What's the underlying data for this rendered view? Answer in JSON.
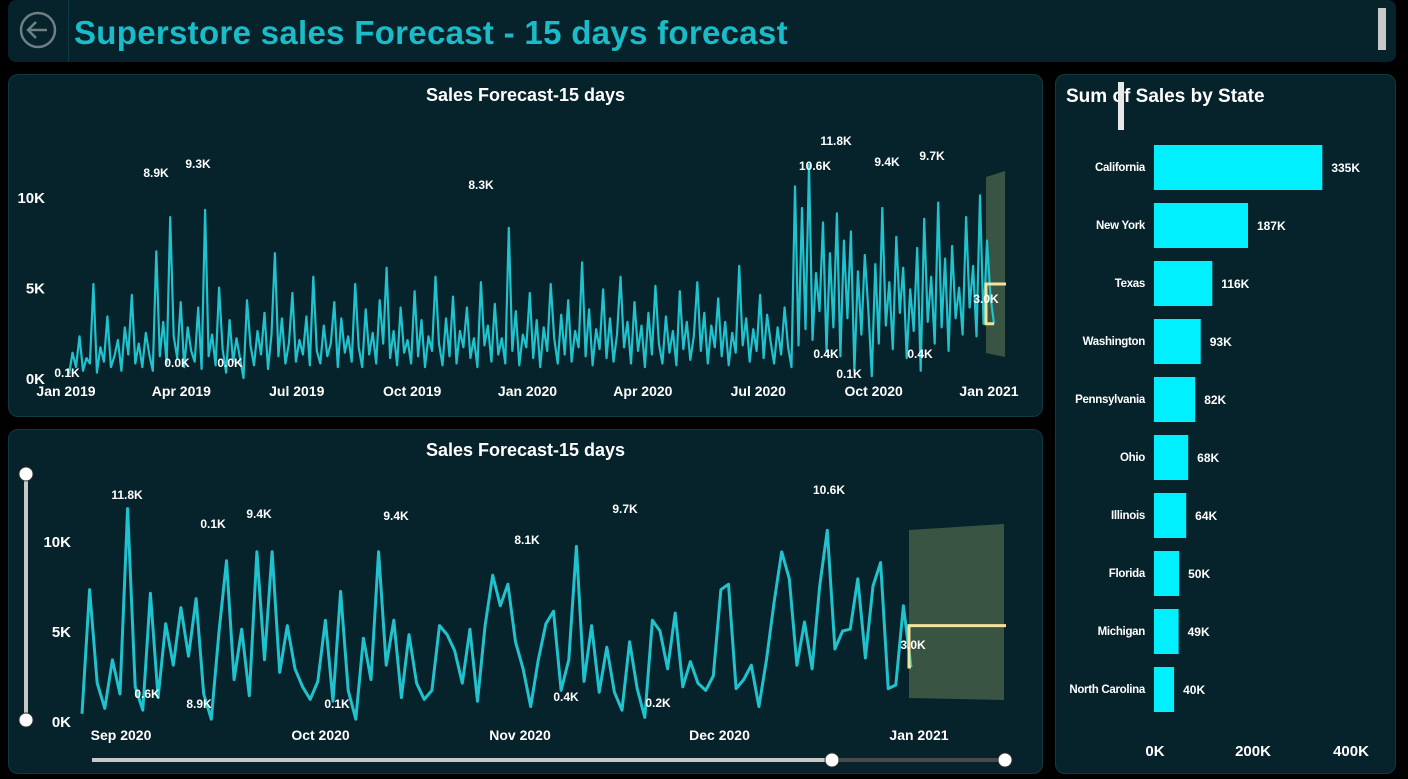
{
  "header": {
    "title": "Superstore sales Forecast - 15 days forecast"
  },
  "chart_data": [
    {
      "type": "line",
      "title": "Sales Forecast-15 days",
      "x_tick_labels": [
        "Jan 2019",
        "Apr 2019",
        "Jul 2019",
        "Oct 2019",
        "Jan 2020",
        "Apr 2020",
        "Jul 2020",
        "Oct 2020",
        "Jan 2021"
      ],
      "y_tick_labels": [
        "0K",
        "5K",
        "10K"
      ],
      "ylim": [
        0,
        12000
      ],
      "data_labels": [
        "0.1K",
        "8.9K",
        "9.3K",
        "0.0K",
        "0.0K",
        "8.3K",
        "10.6K",
        "11.8K",
        "0.4K",
        "0.1K",
        "9.4K",
        "0.4K",
        "9.7K",
        "3.0K"
      ],
      "series": [
        {
          "values": [
            200,
            1400,
            600,
            2300,
            400,
            1100,
            800,
            5200,
            300,
            1700,
            900,
            3400,
            600,
            1200,
            2100,
            400,
            2800,
            1300,
            4600,
            800,
            1900,
            600,
            2500,
            1300,
            400,
            7000,
            1200,
            3100,
            800,
            8900,
            2300,
            1100,
            4200,
            600,
            2800,
            1500,
            900,
            3900,
            500,
            9300,
            1200,
            2400,
            700,
            5000,
            1600,
            300,
            3200,
            900,
            2200,
            1100,
            0,
            4300,
            1800,
            700,
            2600,
            1300,
            3600,
            500,
            2400,
            6900,
            1200,
            3300,
            800,
            1900,
            4700,
            900,
            2100,
            1300,
            3400,
            700,
            5600,
            1500,
            800,
            2900,
            1200,
            1900,
            4200,
            600,
            3300,
            1400,
            2300,
            900,
            5200,
            1700,
            600,
            3800,
            1300,
            2500,
            800,
            4300,
            1900,
            6100,
            1100,
            2600,
            700,
            3900,
            1400,
            2100,
            800,
            4800,
            1200,
            3200,
            600,
            2300,
            1500,
            5600,
            1900,
            700,
            3300,
            1200,
            4500,
            800,
            2600,
            1700,
            3900,
            1100,
            2200,
            600,
            5300,
            1800,
            2900,
            900,
            4100,
            1300,
            2200,
            800,
            8300,
            1500,
            3700,
            700,
            2400,
            1700,
            4700,
            1100,
            3200,
            600,
            2800,
            1500,
            5200,
            2200,
            800,
            3500,
            1300,
            4300,
            900,
            2600,
            1700,
            6400,
            1200,
            3800,
            700,
            2700,
            1600,
            4900,
            1100,
            3300,
            900,
            2400,
            5600,
            1700,
            3100,
            800,
            4200,
            1500,
            2900,
            600,
            3600,
            1300,
            5100,
            1900,
            800,
            3400,
            1400,
            2600,
            700,
            4800,
            1600,
            3100,
            1000,
            2300,
            5300,
            1500,
            3600,
            800,
            2900,
            1700,
            4400,
            1200,
            3100,
            700,
            2500,
            1400,
            6200,
            1800,
            3300,
            900,
            2700,
            1500,
            4600,
            1100,
            3500,
            2000,
            800,
            2800,
            1300,
            3900,
            1700,
            600,
            10600,
            1800,
            9400,
            2700,
            11800,
            2100,
            5800,
            3700,
            8600,
            1500,
            6900,
            2800,
            9100,
            1200,
            7600,
            3300,
            8100,
            400,
            5900,
            2400,
            6800,
            3800,
            100,
            6300,
            1900,
            9400,
            2900,
            5300,
            1600,
            7800,
            3600,
            6100,
            1100,
            4900,
            2600,
            7200,
            400,
            8800,
            3100,
            5600,
            1900,
            9700,
            2800,
            6600,
            1500,
            7300,
            3300,
            5000,
            2400,
            8900,
            3900,
            6200,
            2300,
            10100,
            3000,
            7600,
            4500,
            3000
          ]
        }
      ]
    },
    {
      "type": "line",
      "title": "Sales Forecast-15 days",
      "x_tick_labels": [
        "Sep 2020",
        "Oct 2020",
        "Nov 2020",
        "Dec 2020",
        "Jan 2021"
      ],
      "y_tick_labels": [
        "0K",
        "5K",
        "10K"
      ],
      "ylim": [
        0,
        12000
      ],
      "data_labels": [
        "11.8K",
        "0.6K",
        "8.9K",
        "0.1K",
        "9.4K",
        "0.1K",
        "9.4K",
        "8.1K",
        "0.4K",
        "9.7K",
        "0.2K",
        "10.6K",
        "3.0K"
      ],
      "series": [
        {
          "values": [
            400,
            7300,
            2100,
            700,
            3400,
            1500,
            11800,
            1900,
            600,
            7100,
            1300,
            5400,
            3100,
            6300,
            3600,
            6800,
            1500,
            100,
            4900,
            8900,
            2300,
            5100,
            1400,
            9400,
            3400,
            9400,
            2700,
            5300,
            2900,
            1900,
            1200,
            2200,
            5600,
            1100,
            7200,
            1700,
            100,
            4600,
            2300,
            9400,
            3100,
            5600,
            1300,
            4800,
            2100,
            1200,
            1700,
            5300,
            4800,
            3900,
            2100,
            5100,
            1100,
            5300,
            8100,
            6400,
            7600,
            4400,
            2900,
            800,
            3400,
            5400,
            6100,
            1700,
            3400,
            9700,
            2200,
            5300,
            1600,
            4100,
            1600,
            600,
            4400,
            1800,
            200,
            5600,
            5000,
            2900,
            6000,
            1900,
            3300,
            2100,
            1700,
            2500,
            7300,
            7600,
            1800,
            2300,
            3100,
            800,
            3400,
            6600,
            9400,
            7900,
            3100,
            5500,
            2900,
            7500,
            10600,
            4000,
            5000,
            5100,
            7900,
            3500,
            7500,
            8800,
            1800,
            2000,
            6400,
            3000
          ]
        }
      ]
    },
    {
      "type": "bar",
      "title": "Sum of Sales by State",
      "categories": [
        "California",
        "New York",
        "Texas",
        "Washington",
        "Pennsylvania",
        "Ohio",
        "Illinois",
        "Florida",
        "Michigan",
        "North Carolina"
      ],
      "values": [
        335000,
        187000,
        116000,
        93000,
        82000,
        68000,
        64000,
        50000,
        49000,
        40000
      ],
      "value_labels": [
        "335K",
        "187K",
        "116K",
        "93K",
        "82K",
        "68K",
        "64K",
        "50K",
        "49K",
        "40K"
      ],
      "x_tick_labels": [
        "0K",
        "200K",
        "400K"
      ],
      "xlim": [
        0,
        400000
      ]
    }
  ],
  "colors": {
    "line": "#1fc2cd",
    "forecast": "#f2e29a",
    "confidence": "#3a5444",
    "bar": "#00f0ff",
    "panel": "#06222a"
  }
}
